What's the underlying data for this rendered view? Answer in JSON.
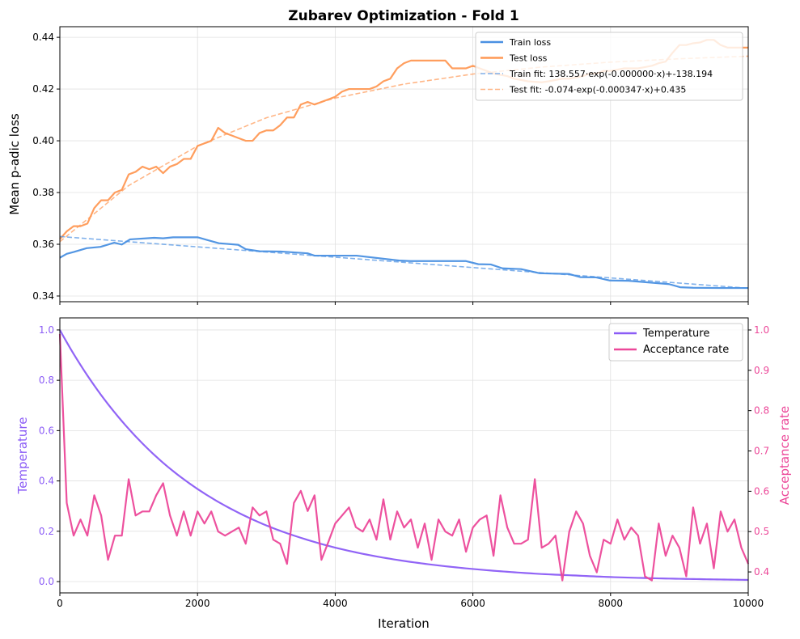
{
  "title": "Zubarev Optimization - Fold 1",
  "colors": {
    "train": "#4a90e2",
    "test": "#ff9955",
    "temperature": "#8b5cf6",
    "acceptance": "#ec4899",
    "grid": "#e0e0e0"
  },
  "chart_data": [
    {
      "type": "line",
      "ylabel": "Mean p-adic loss",
      "xlim": [
        0,
        10000
      ],
      "ylim": [
        0.3378,
        0.4441
      ],
      "xticks": [
        0,
        2000,
        4000,
        6000,
        8000,
        10000
      ],
      "yticks": [
        0.34,
        0.36,
        0.38,
        0.4,
        0.42,
        0.44
      ],
      "ytick_labels": [
        "0.34",
        "0.36",
        "0.38",
        "0.40",
        "0.42",
        "0.44"
      ],
      "grid": true,
      "legend_placement": "top-right",
      "series": [
        {
          "name": "Train loss",
          "style": "solid",
          "color": "#4a90e2",
          "x": [
            0,
            100,
            200,
            390,
            590,
            790,
            900,
            1020,
            1370,
            1500,
            1645,
            2000,
            2310,
            2590,
            2700,
            2900,
            3210,
            3600,
            3700,
            4310,
            4930,
            5090,
            5900,
            6080,
            6260,
            6430,
            6700,
            6970,
            7400,
            7560,
            7790,
            7990,
            8260,
            8850,
            9010,
            9200,
            9600,
            10000
          ],
          "y": [
            0.3548,
            0.3563,
            0.357,
            0.3585,
            0.359,
            0.3606,
            0.3599,
            0.3619,
            0.3625,
            0.3623,
            0.3627,
            0.3627,
            0.3604,
            0.3598,
            0.3581,
            0.3573,
            0.3572,
            0.3565,
            0.3556,
            0.3556,
            0.3537,
            0.3535,
            0.3535,
            0.3523,
            0.3522,
            0.3507,
            0.3504,
            0.3488,
            0.3485,
            0.3473,
            0.3472,
            0.346,
            0.3459,
            0.3446,
            0.3434,
            0.3432,
            0.3431,
            0.3431
          ]
        },
        {
          "name": "Test loss",
          "style": "solid",
          "color": "#ff9955",
          "x_start": 0,
          "x_step": 100,
          "y": [
            0.362,
            0.365,
            0.367,
            0.367,
            0.368,
            0.374,
            0.377,
            0.377,
            0.38,
            0.381,
            0.387,
            0.388,
            0.39,
            0.389,
            0.39,
            0.3875,
            0.39,
            0.391,
            0.393,
            0.393,
            0.398,
            0.399,
            0.4,
            0.405,
            0.403,
            0.402,
            0.401,
            0.4,
            0.4,
            0.403,
            0.404,
            0.404,
            0.406,
            0.409,
            0.409,
            0.414,
            0.415,
            0.414,
            0.415,
            0.416,
            0.417,
            0.419,
            0.42,
            0.42,
            0.42,
            0.42,
            0.421,
            0.423,
            0.424,
            0.428,
            0.43,
            0.431,
            0.431,
            0.431,
            0.431,
            0.431,
            0.431,
            0.428,
            0.428,
            0.428,
            0.429,
            0.428,
            0.427,
            0.426,
            0.4255,
            0.425,
            0.424,
            0.4235,
            0.423,
            0.4228,
            0.4226,
            0.423,
            0.4235,
            0.424,
            0.424,
            0.4245,
            0.425,
            0.426,
            0.426,
            0.427,
            0.427,
            0.4275,
            0.428,
            0.428,
            0.428,
            0.4285,
            0.429,
            0.43,
            0.4306,
            0.434,
            0.437,
            0.437,
            0.4377,
            0.438,
            0.439,
            0.439,
            0.437,
            0.436,
            0.436,
            0.436,
            0.436
          ]
        },
        {
          "name": "Train fit: 138.557·exp(-0.000000·x)+-138.194",
          "style": "dashed",
          "color": "#4a90e2",
          "x": [
            0,
            10000
          ],
          "y": [
            0.363,
            0.343
          ]
        },
        {
          "name": "Test fit: -0.074·exp(-0.000347·x)+0.435",
          "style": "dashed",
          "color": "#ff9955",
          "x": [
            0,
            1000,
            2000,
            3000,
            4000,
            5000,
            6000,
            7000,
            8000,
            9000,
            10000
          ],
          "y": [
            0.361,
            0.3827,
            0.398,
            0.4089,
            0.4165,
            0.4219,
            0.4258,
            0.4285,
            0.4304,
            0.4317,
            0.4327
          ]
        }
      ]
    },
    {
      "type": "line",
      "xlabel": "Iteration",
      "ylabel": "Temperature",
      "ylabel_right": "Acceptance rate",
      "xlim": [
        0,
        10000
      ],
      "ylim": [
        -0.045,
        1.048
      ],
      "ylim_right": [
        0.348,
        1.03
      ],
      "xticks": [
        0,
        2000,
        4000,
        6000,
        8000,
        10000
      ],
      "xtick_labels": [
        "0",
        "2000",
        "4000",
        "6000",
        "8000",
        "10000"
      ],
      "yticks": [
        0.0,
        0.2,
        0.4,
        0.6,
        0.8,
        1.0
      ],
      "ytick_labels": [
        "0.0",
        "0.2",
        "0.4",
        "0.6",
        "0.8",
        "1.0"
      ],
      "yticks_right": [
        0.4,
        0.5,
        0.6,
        0.7,
        0.8,
        0.9,
        1.0
      ],
      "ytick_labels_right": [
        "0.4",
        "0.5",
        "0.6",
        "0.7",
        "0.8",
        "0.9",
        "1.0"
      ],
      "grid": true,
      "legend_placement": "top-right",
      "series": [
        {
          "name": "Temperature",
          "axis": "left",
          "color": "#8b5cf6",
          "x_start": 0,
          "x_step": 500,
          "y": [
            1.0,
            0.779,
            0.607,
            0.472,
            0.368,
            0.287,
            0.223,
            0.174,
            0.135,
            0.105,
            0.082,
            0.064,
            0.05,
            0.039,
            0.03,
            0.024,
            0.018,
            0.014,
            0.011,
            0.0087,
            0.0067
          ]
        },
        {
          "name": "Acceptance rate",
          "axis": "right",
          "color": "#ec4899",
          "x_start": 0,
          "x_step": 100,
          "y": [
            0.99,
            0.571,
            0.49,
            0.53,
            0.49,
            0.59,
            0.54,
            0.43,
            0.49,
            0.49,
            0.63,
            0.54,
            0.55,
            0.55,
            0.59,
            0.62,
            0.54,
            0.49,
            0.55,
            0.49,
            0.55,
            0.52,
            0.55,
            0.5,
            0.49,
            0.5,
            0.51,
            0.47,
            0.56,
            0.54,
            0.55,
            0.48,
            0.47,
            0.42,
            0.571,
            0.601,
            0.551,
            0.59,
            0.43,
            0.474,
            0.52,
            0.54,
            0.56,
            0.511,
            0.5,
            0.53,
            0.48,
            0.58,
            0.48,
            0.55,
            0.51,
            0.53,
            0.46,
            0.52,
            0.43,
            0.53,
            0.5,
            0.49,
            0.53,
            0.45,
            0.51,
            0.53,
            0.54,
            0.44,
            0.59,
            0.51,
            0.47,
            0.47,
            0.48,
            0.63,
            0.46,
            0.47,
            0.49,
            0.379,
            0.5,
            0.55,
            0.52,
            0.44,
            0.399,
            0.48,
            0.47,
            0.53,
            0.48,
            0.51,
            0.49,
            0.389,
            0.379,
            0.52,
            0.44,
            0.49,
            0.46,
            0.389,
            0.56,
            0.47,
            0.52,
            0.409,
            0.55,
            0.5,
            0.53,
            0.46,
            0.42
          ]
        }
      ]
    }
  ]
}
